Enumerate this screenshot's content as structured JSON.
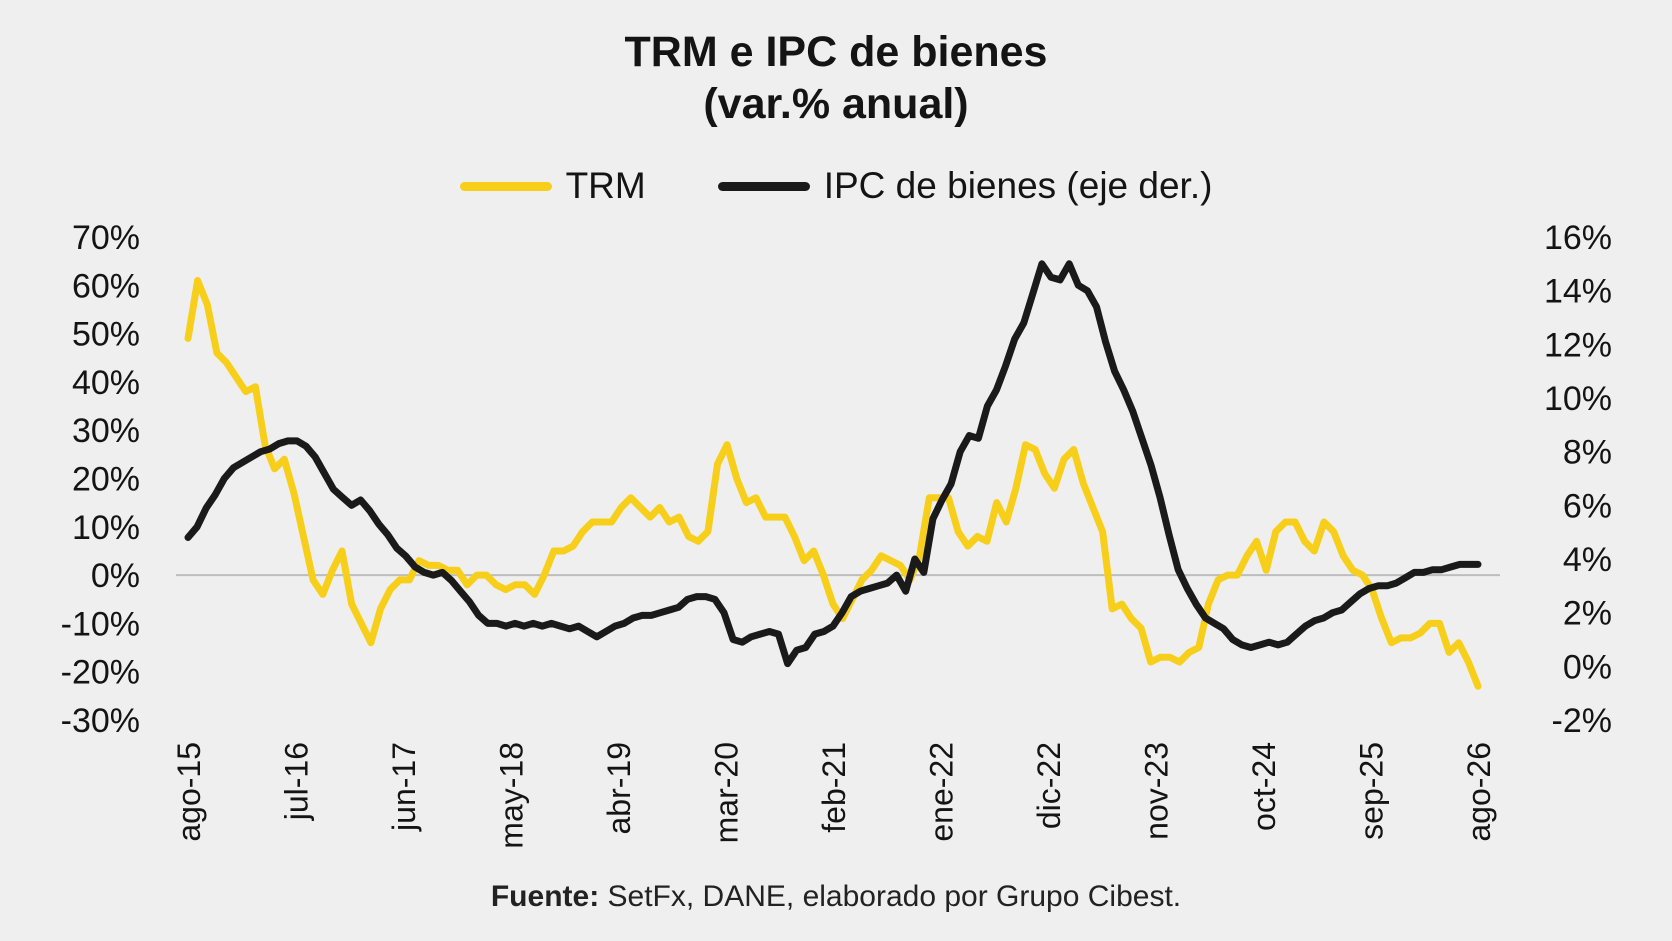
{
  "header": {
    "title": "TRM e IPC de bienes",
    "subtitle": "(var.% anual)"
  },
  "footer": {
    "source_label": "Fuente:",
    "source_text": " SetFx, DANE, elaborado por Grupo Cibest."
  },
  "chart_data": {
    "type": "line",
    "legend_position": "top-center",
    "grid": false,
    "x_tick_labels": [
      "ago-15",
      "jul-16",
      "jun-17",
      "may-18",
      "abr-19",
      "mar-20",
      "feb-21",
      "ene-22",
      "dic-22",
      "nov-23",
      "oct-24",
      "sep-25",
      "ago-26"
    ],
    "y_left": {
      "ticks": [
        70,
        60,
        50,
        40,
        30,
        20,
        10,
        0,
        -10,
        -20,
        -30
      ],
      "format": "percent",
      "range": [
        -30,
        70
      ]
    },
    "y_right": {
      "ticks": [
        16,
        14,
        12,
        10,
        8,
        6,
        4,
        2,
        0,
        -2
      ],
      "format": "percent",
      "range": [
        -2,
        16
      ]
    },
    "series": [
      {
        "name": "TRM",
        "axis": "left",
        "color": "#f7cf1b",
        "x_start": "ago-15",
        "frequency": "monthly",
        "values": [
          49,
          61,
          56,
          46,
          44,
          41,
          38,
          39,
          27,
          22,
          24,
          17,
          8,
          -1,
          -4,
          1,
          5,
          -6,
          -10,
          -14,
          -7,
          -3,
          -1,
          -1,
          3,
          2,
          2,
          1,
          1,
          -2,
          0,
          0,
          -2,
          -3,
          -2,
          -2,
          -4,
          0,
          5,
          5,
          6,
          9,
          11,
          11,
          11,
          14,
          16,
          14,
          12,
          14,
          11,
          12,
          8,
          7,
          9,
          23,
          27,
          20,
          15,
          16,
          12,
          12,
          12,
          8,
          3,
          5,
          0,
          -6,
          -9,
          -5,
          -1,
          1,
          4,
          3,
          2,
          -1,
          4,
          16,
          16,
          16,
          9,
          6,
          8,
          7,
          15,
          11,
          18,
          27,
          26,
          21,
          18,
          24,
          26,
          19,
          14,
          9,
          -7,
          -6,
          -9,
          -11,
          -18,
          -17,
          -17,
          -18,
          -16,
          -15,
          -6,
          -1,
          0,
          0,
          4,
          7,
          1,
          9,
          11,
          11,
          7,
          5,
          11,
          9,
          4,
          1,
          0,
          -3,
          -9,
          -14,
          -13,
          -13,
          -12,
          -10,
          -10,
          -16,
          -14,
          -18,
          -23
        ]
      },
      {
        "name": "IPC de bienes (eje der.)",
        "axis": "right",
        "color": "#1a1a1a",
        "x_start": "ago-15",
        "frequency": "monthly",
        "values": [
          4.8,
          5.2,
          5.9,
          6.4,
          7.0,
          7.4,
          7.6,
          7.8,
          8.0,
          8.1,
          8.3,
          8.4,
          8.4,
          8.2,
          7.8,
          7.2,
          6.6,
          6.3,
          6.0,
          6.2,
          5.8,
          5.3,
          4.9,
          4.4,
          4.1,
          3.7,
          3.5,
          3.4,
          3.5,
          3.2,
          2.8,
          2.4,
          1.9,
          1.6,
          1.6,
          1.5,
          1.6,
          1.5,
          1.6,
          1.5,
          1.6,
          1.5,
          1.4,
          1.5,
          1.3,
          1.1,
          1.3,
          1.5,
          1.6,
          1.8,
          1.9,
          1.9,
          2.0,
          2.1,
          2.2,
          2.5,
          2.6,
          2.6,
          2.5,
          2.0,
          1.0,
          0.9,
          1.1,
          1.2,
          1.3,
          1.2,
          0.1,
          0.6,
          0.7,
          1.2,
          1.3,
          1.5,
          2.0,
          2.6,
          2.8,
          2.9,
          3.0,
          3.1,
          3.4,
          2.8,
          4.0,
          3.5,
          5.5,
          6.2,
          6.8,
          8.0,
          8.6,
          8.5,
          9.7,
          10.3,
          11.2,
          12.2,
          12.8,
          13.9,
          15.0,
          14.5,
          14.4,
          15.0,
          14.2,
          14.0,
          13.4,
          12.1,
          11.0,
          10.3,
          9.5,
          8.5,
          7.5,
          6.3,
          4.9,
          3.6,
          2.9,
          2.3,
          1.8,
          1.6,
          1.4,
          1.0,
          0.8,
          0.7,
          0.8,
          0.9,
          0.8,
          0.9,
          1.2,
          1.5,
          1.7,
          1.8,
          2.0,
          2.1,
          2.4,
          2.7,
          2.9,
          3.0,
          3.0,
          3.1,
          3.3,
          3.5,
          3.5,
          3.6,
          3.6,
          3.7,
          3.8,
          3.8,
          3.8
        ]
      }
    ]
  }
}
